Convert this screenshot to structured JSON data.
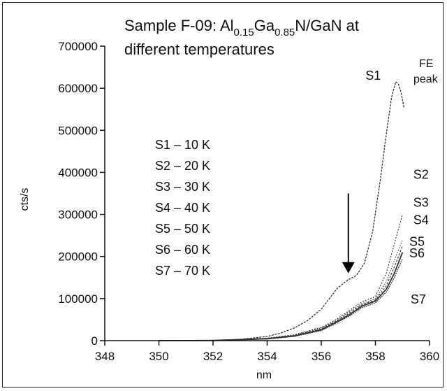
{
  "chart_data": {
    "type": "line",
    "title": {
      "prefix": "Sample F-09: Al",
      "sub1": "0.15",
      "mid": "Ga",
      "sub2": "0.85",
      "suffix": "N/GaN at",
      "line2": "different temperatures"
    },
    "xlabel": "nm",
    "ylabel": "cts/s",
    "xlim": [
      348,
      360
    ],
    "ylim": [
      0,
      700000
    ],
    "x_ticks": [
      348,
      350,
      352,
      354,
      356,
      358,
      360
    ],
    "y_ticks": [
      0,
      100000,
      200000,
      300000,
      400000,
      500000,
      600000,
      700000
    ],
    "legend": [
      "S1 – 10 K",
      "S2 – 20 K",
      "S3 – 30 K",
      "S4 – 40 K",
      "S5 – 50 K",
      "S6 – 60 K",
      "S7 – 70 K"
    ],
    "annotations": {
      "fe_peak_line1": "FE",
      "fe_peak_line2": "peak",
      "arrow_x_nm": 357.0,
      "arrow_y_top": 350000,
      "arrow_y_tip": 160000
    },
    "series": [
      {
        "name": "S1",
        "label_pos": {
          "x": 358.2,
          "y": 620000
        },
        "x": [
          350.0,
          352.0,
          353.0,
          354.0,
          354.5,
          355.0,
          355.5,
          356.0,
          356.3,
          356.6,
          357.0,
          357.3,
          357.6,
          357.9,
          358.2,
          358.4,
          358.6,
          358.75,
          358.85,
          358.95,
          359.05
        ],
        "y": [
          0,
          1000,
          3000,
          10000,
          18000,
          30000,
          48000,
          75000,
          100000,
          125000,
          145000,
          155000,
          185000,
          260000,
          390000,
          490000,
          580000,
          615000,
          610000,
          590000,
          555000
        ]
      },
      {
        "name": "S2",
        "label_pos": {
          "x": 359.4,
          "y": 385000
        },
        "x": [
          350.0,
          352.0,
          354.0,
          355.0,
          356.0,
          356.5,
          357.0,
          357.5,
          358.0,
          358.4,
          358.7,
          359.0
        ],
        "y": [
          0,
          500,
          6000,
          14000,
          32000,
          48000,
          70000,
          92000,
          105000,
          160000,
          230000,
          300000
        ]
      },
      {
        "name": "S3",
        "label_pos": {
          "x": 359.4,
          "y": 318000
        },
        "x": [
          350.0,
          352.0,
          354.0,
          355.0,
          356.0,
          356.5,
          357.0,
          357.5,
          358.0,
          358.4,
          358.7,
          359.0
        ],
        "y": [
          0,
          500,
          5500,
          13000,
          30000,
          46000,
          67000,
          88000,
          100000,
          140000,
          190000,
          240000
        ]
      },
      {
        "name": "S4",
        "label_pos": {
          "x": 359.4,
          "y": 277000
        },
        "x": [
          350.0,
          352.0,
          354.0,
          355.0,
          356.0,
          356.5,
          357.0,
          357.5,
          358.0,
          358.4,
          358.7,
          359.0
        ],
        "y": [
          0,
          400,
          5000,
          12000,
          28000,
          44000,
          64000,
          85000,
          97000,
          130000,
          175000,
          225000
        ]
      },
      {
        "name": "S5",
        "label_pos": {
          "x": 359.25,
          "y": 225000
        },
        "x": [
          350.0,
          352.0,
          354.0,
          355.0,
          356.0,
          356.5,
          357.0,
          357.5,
          358.0,
          358.4,
          358.7,
          359.0
        ],
        "y": [
          0,
          300,
          4500,
          11000,
          26000,
          42000,
          60000,
          82000,
          94000,
          122000,
          160000,
          210000
        ]
      },
      {
        "name": "S6",
        "label_pos": {
          "x": 359.25,
          "y": 198000
        },
        "x": [
          350.0,
          352.0,
          354.0,
          355.0,
          356.0,
          356.5,
          357.0,
          357.5,
          358.0,
          358.4,
          358.7,
          359.0
        ],
        "y": [
          0,
          300,
          4000,
          10000,
          24000,
          40000,
          57000,
          78000,
          90000,
          115000,
          150000,
          195000
        ]
      },
      {
        "name": "S7",
        "label_pos": {
          "x": 359.3,
          "y": 88000
        },
        "x": [
          356.4,
          356.6,
          356.8
        ],
        "y": [
          35000,
          40000,
          45000
        ]
      }
    ]
  }
}
